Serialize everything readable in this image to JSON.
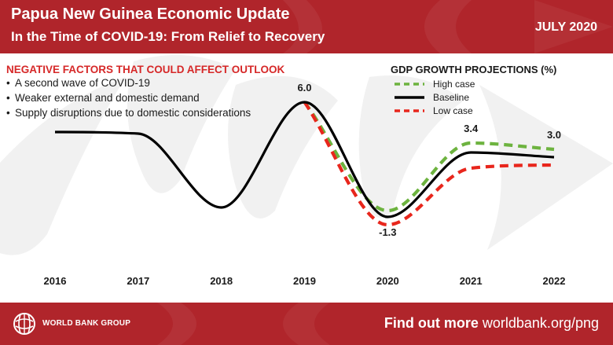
{
  "header": {
    "title": "Papua New Guinea Economic Update",
    "subtitle": "In the Time of COVID-19: From Relief to Recovery",
    "date": "JULY 2020"
  },
  "factors": {
    "title": "NEGATIVE FACTORS THAT COULD AFFECT OUTLOOK",
    "items": [
      "A second wave of COVID-19",
      "Weaker external and domestic demand",
      "Supply disruptions due to domestic considerations"
    ]
  },
  "footer": {
    "org": "WORLD BANK GROUP",
    "cta_bold": "Find out more",
    "cta_link": "worldbank.org/png"
  },
  "icons": {
    "logo": "world-bank-globe-icon"
  },
  "colors": {
    "brand": "#b0252b",
    "high_case": "#6db33f",
    "baseline": "#000000",
    "low_case": "#e8261c",
    "factors_title": "#d62828"
  },
  "chart_data": {
    "type": "line",
    "title": "GDP GROWTH PROJECTIONS (%)",
    "x": [
      2016,
      2017,
      2018,
      2019,
      2020,
      2021,
      2022
    ],
    "x_labels": [
      "2016",
      "2017",
      "2018",
      "2019",
      "2020",
      "2021",
      "2022"
    ],
    "ylim": [
      -4,
      8
    ],
    "grid": false,
    "axes_visible": false,
    "legend_position": "top-right",
    "series": [
      {
        "name": "High case",
        "style": "dashed",
        "color": "#6db33f",
        "x": [
          2019,
          2020,
          2021,
          2022
        ],
        "values": [
          6.0,
          -0.9,
          3.4,
          3.0
        ]
      },
      {
        "name": "Baseline",
        "style": "solid",
        "color": "#000000",
        "x": [
          2016,
          2017,
          2018,
          2019,
          2020,
          2021,
          2022
        ],
        "values": [
          4.1,
          4.0,
          -0.7,
          6.0,
          -1.3,
          2.8,
          2.5
        ]
      },
      {
        "name": "Low case",
        "style": "dashed",
        "color": "#e8261c",
        "x": [
          2019,
          2020,
          2021,
          2022
        ],
        "values": [
          6.0,
          -1.8,
          1.8,
          2.0
        ]
      }
    ],
    "annotations": [
      {
        "text": "6.0",
        "x": 2019,
        "y": 6.0,
        "position": "above"
      },
      {
        "text": "-1.3",
        "x": 2020,
        "y": -1.3,
        "position": "below"
      },
      {
        "text": "3.4",
        "x": 2021,
        "y": 3.4,
        "position": "above"
      },
      {
        "text": "3.0",
        "x": 2022,
        "y": 3.0,
        "position": "above"
      }
    ]
  }
}
